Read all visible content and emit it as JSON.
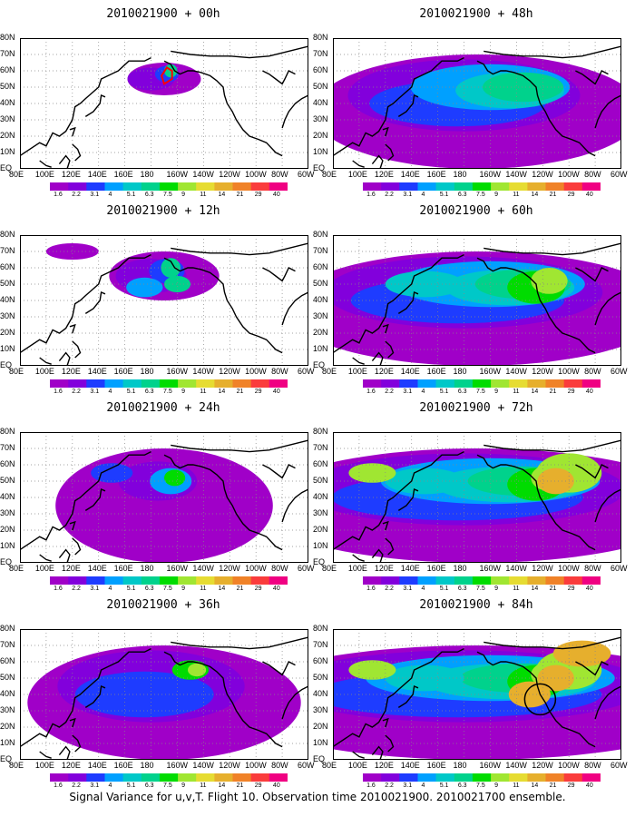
{
  "chart_data": {
    "type": "heatmap",
    "caption": "Signal Variance for u,v,T. Flight 10. Observation time 2010021900. 2010021700 ensemble.",
    "lat_labels": [
      "80N",
      "70N",
      "60N",
      "50N",
      "40N",
      "30N",
      "20N",
      "10N",
      "EQ"
    ],
    "lon_labels": [
      "80E",
      "100E",
      "120E",
      "140E",
      "160E",
      "180",
      "160W",
      "140W",
      "120W",
      "100W",
      "80W",
      "60W"
    ],
    "colorbar": {
      "levels": [
        "1.6",
        "2.2",
        "3.1",
        "4",
        "5.1",
        "6.3",
        "7.5",
        "9",
        "11",
        "14",
        "21",
        "29",
        "40"
      ],
      "colors": [
        "#a000c8",
        "#8200dc",
        "#1e3cff",
        "#00a0ff",
        "#00c8c8",
        "#00d28c",
        "#00dc00",
        "#a0e632",
        "#e6dc32",
        "#e6af2d",
        "#f08228",
        "#fa3c3c",
        "#f00082"
      ]
    },
    "panels": [
      {
        "title": "2010021900 + 00h",
        "lead_h": 0,
        "max_level": "7.5"
      },
      {
        "title": "2010021900 + 12h",
        "lead_h": 12,
        "max_level": "9"
      },
      {
        "title": "2010021900 + 24h",
        "lead_h": 24,
        "max_level": "9"
      },
      {
        "title": "2010021900 + 36h",
        "lead_h": 36,
        "max_level": "11"
      },
      {
        "title": "2010021900 + 48h",
        "lead_h": 48,
        "max_level": "11"
      },
      {
        "title": "2010021900 + 60h",
        "lead_h": 60,
        "max_level": "14"
      },
      {
        "title": "2010021900 + 72h",
        "lead_h": 72,
        "max_level": "14"
      },
      {
        "title": "2010021900 + 84h",
        "lead_h": 84,
        "max_level": "14"
      }
    ]
  }
}
